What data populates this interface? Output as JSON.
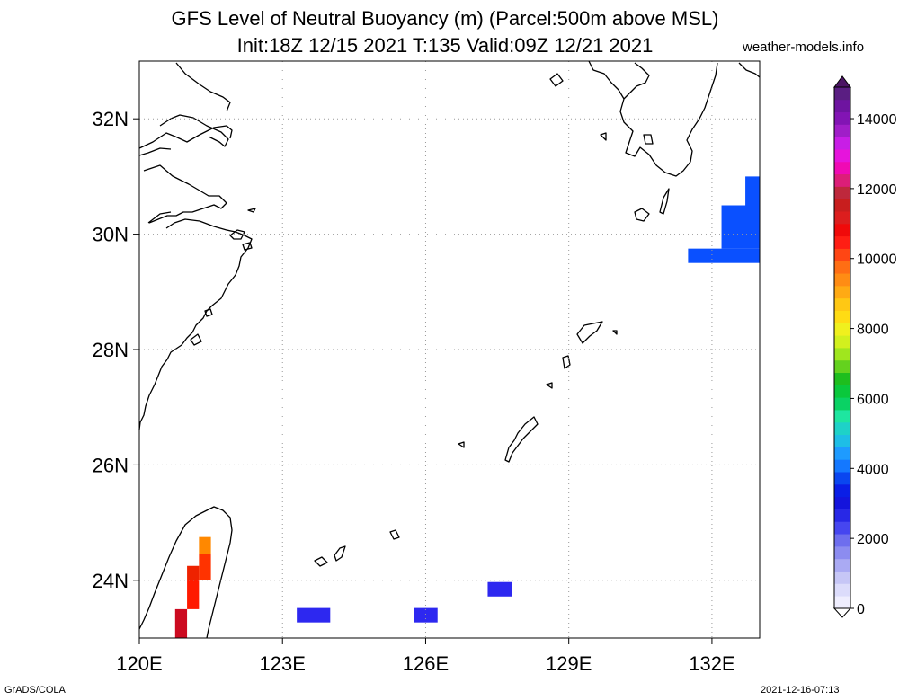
{
  "title_line1": "GFS Level of Neutral Buoyancy (m) (Parcel:500m above MSL)",
  "title_line2": "Init:18Z 12/15 2021 T:135 Valid:09Z 12/21 2021",
  "site": "weather-models.info",
  "footer_left": "GrADS/COLA",
  "footer_right": "2021-12-16-07:13",
  "map": {
    "lon_range": [
      120,
      133
    ],
    "lat_range": [
      23,
      33
    ],
    "x_ticks": [
      {
        "value": 120,
        "label": "120E"
      },
      {
        "value": 123,
        "label": "123E"
      },
      {
        "value": 126,
        "label": "126E"
      },
      {
        "value": 129,
        "label": "129E"
      },
      {
        "value": 132,
        "label": "132E"
      }
    ],
    "y_ticks": [
      {
        "value": 24,
        "label": "24N"
      },
      {
        "value": 26,
        "label": "26N"
      },
      {
        "value": 28,
        "label": "28N"
      },
      {
        "value": 30,
        "label": "30N"
      },
      {
        "value": 32,
        "label": "32N"
      }
    ],
    "grid": true,
    "field_cells": [
      {
        "lon0": 131.5,
        "lat0": 29.5,
        "lon1": 133.0,
        "lat1": 29.75,
        "color": "#0a50ff"
      },
      {
        "lon0": 132.2,
        "lat0": 29.75,
        "lon1": 133.0,
        "lat1": 30.5,
        "color": "#0a50ff"
      },
      {
        "lon0": 132.7,
        "lat0": 30.5,
        "lon1": 133.0,
        "lat1": 31.0,
        "color": "#0a50ff"
      },
      {
        "lon0": 127.3,
        "lat0": 23.72,
        "lon1": 127.8,
        "lat1": 23.97,
        "color": "#2d28f0"
      },
      {
        "lon0": 123.3,
        "lat0": 23.27,
        "lon1": 124.0,
        "lat1": 23.52,
        "color": "#2d28f0"
      },
      {
        "lon0": 125.75,
        "lat0": 23.27,
        "lon1": 126.25,
        "lat1": 23.52,
        "color": "#2d28f0"
      }
    ],
    "taiwan_cells": [
      {
        "lon0": 121.25,
        "lat0": 24.45,
        "lon1": 121.5,
        "lat1": 24.75,
        "color": "#ff8800"
      },
      {
        "lon0": 121.25,
        "lat0": 24.0,
        "lon1": 121.5,
        "lat1": 24.45,
        "color": "#ff3300"
      },
      {
        "lon0": 121.0,
        "lat0": 24.0,
        "lon1": 121.25,
        "lat1": 24.25,
        "color": "#ee2200"
      },
      {
        "lon0": 121.0,
        "lat0": 23.5,
        "lon1": 121.25,
        "lat1": 24.0,
        "color": "#ff1a00"
      },
      {
        "lon0": 120.75,
        "lat0": 23.0,
        "lon1": 121.0,
        "lat1": 23.5,
        "color": "#cc0a20"
      }
    ]
  },
  "colorbar": {
    "labels": [
      "0",
      "2000",
      "4000",
      "6000",
      "8000",
      "10000",
      "12000",
      "14000"
    ],
    "colors": [
      "#efeefe",
      "#dcdcfb",
      "#c6c6f6",
      "#aaaaf3",
      "#8c8cf0",
      "#6e6eee",
      "#4646f0",
      "#2828e6",
      "#1414dc",
      "#0a1ee6",
      "#0a46f0",
      "#1478ff",
      "#1e9bff",
      "#1ebee6",
      "#1ed2c8",
      "#1ee6a0",
      "#0ad264",
      "#0ac83c",
      "#1ebe1e",
      "#64d21e",
      "#a0e61e",
      "#d2f01e",
      "#f0f01e",
      "#ffdc14",
      "#ffc814",
      "#ffaa14",
      "#ff8c14",
      "#ff6e14",
      "#ff4614",
      "#ff1e14",
      "#f00a0a",
      "#dc1e1e",
      "#c81e1e",
      "#be283c",
      "#dc1e78",
      "#f00ab4",
      "#e614dc",
      "#c81ee6",
      "#a01ec8",
      "#8214b4",
      "#6e14a0",
      "#5a1e82"
    ]
  }
}
